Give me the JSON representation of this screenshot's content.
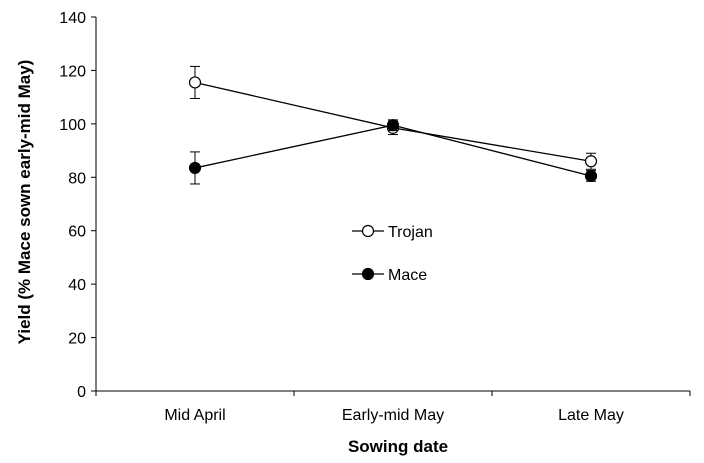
{
  "chart_data": {
    "type": "line",
    "title": "",
    "xlabel": "Sowing date",
    "ylabel": "Yield (% Mace sown early-mid May)",
    "categories": [
      "Mid April",
      "Early-mid May",
      "Late May"
    ],
    "ylim": [
      0,
      140
    ],
    "yticks": [
      0,
      20,
      40,
      60,
      80,
      100,
      120,
      140
    ],
    "grid": false,
    "legend_position": "center",
    "series": [
      {
        "name": "Trojan",
        "marker": "open-circle",
        "values": [
          115.5,
          98.5,
          86
        ],
        "errors": [
          6,
          2.5,
          3
        ]
      },
      {
        "name": "Mace",
        "marker": "filled-circle",
        "values": [
          83.5,
          99.5,
          80.5
        ],
        "errors": [
          6,
          2,
          2
        ]
      }
    ]
  }
}
